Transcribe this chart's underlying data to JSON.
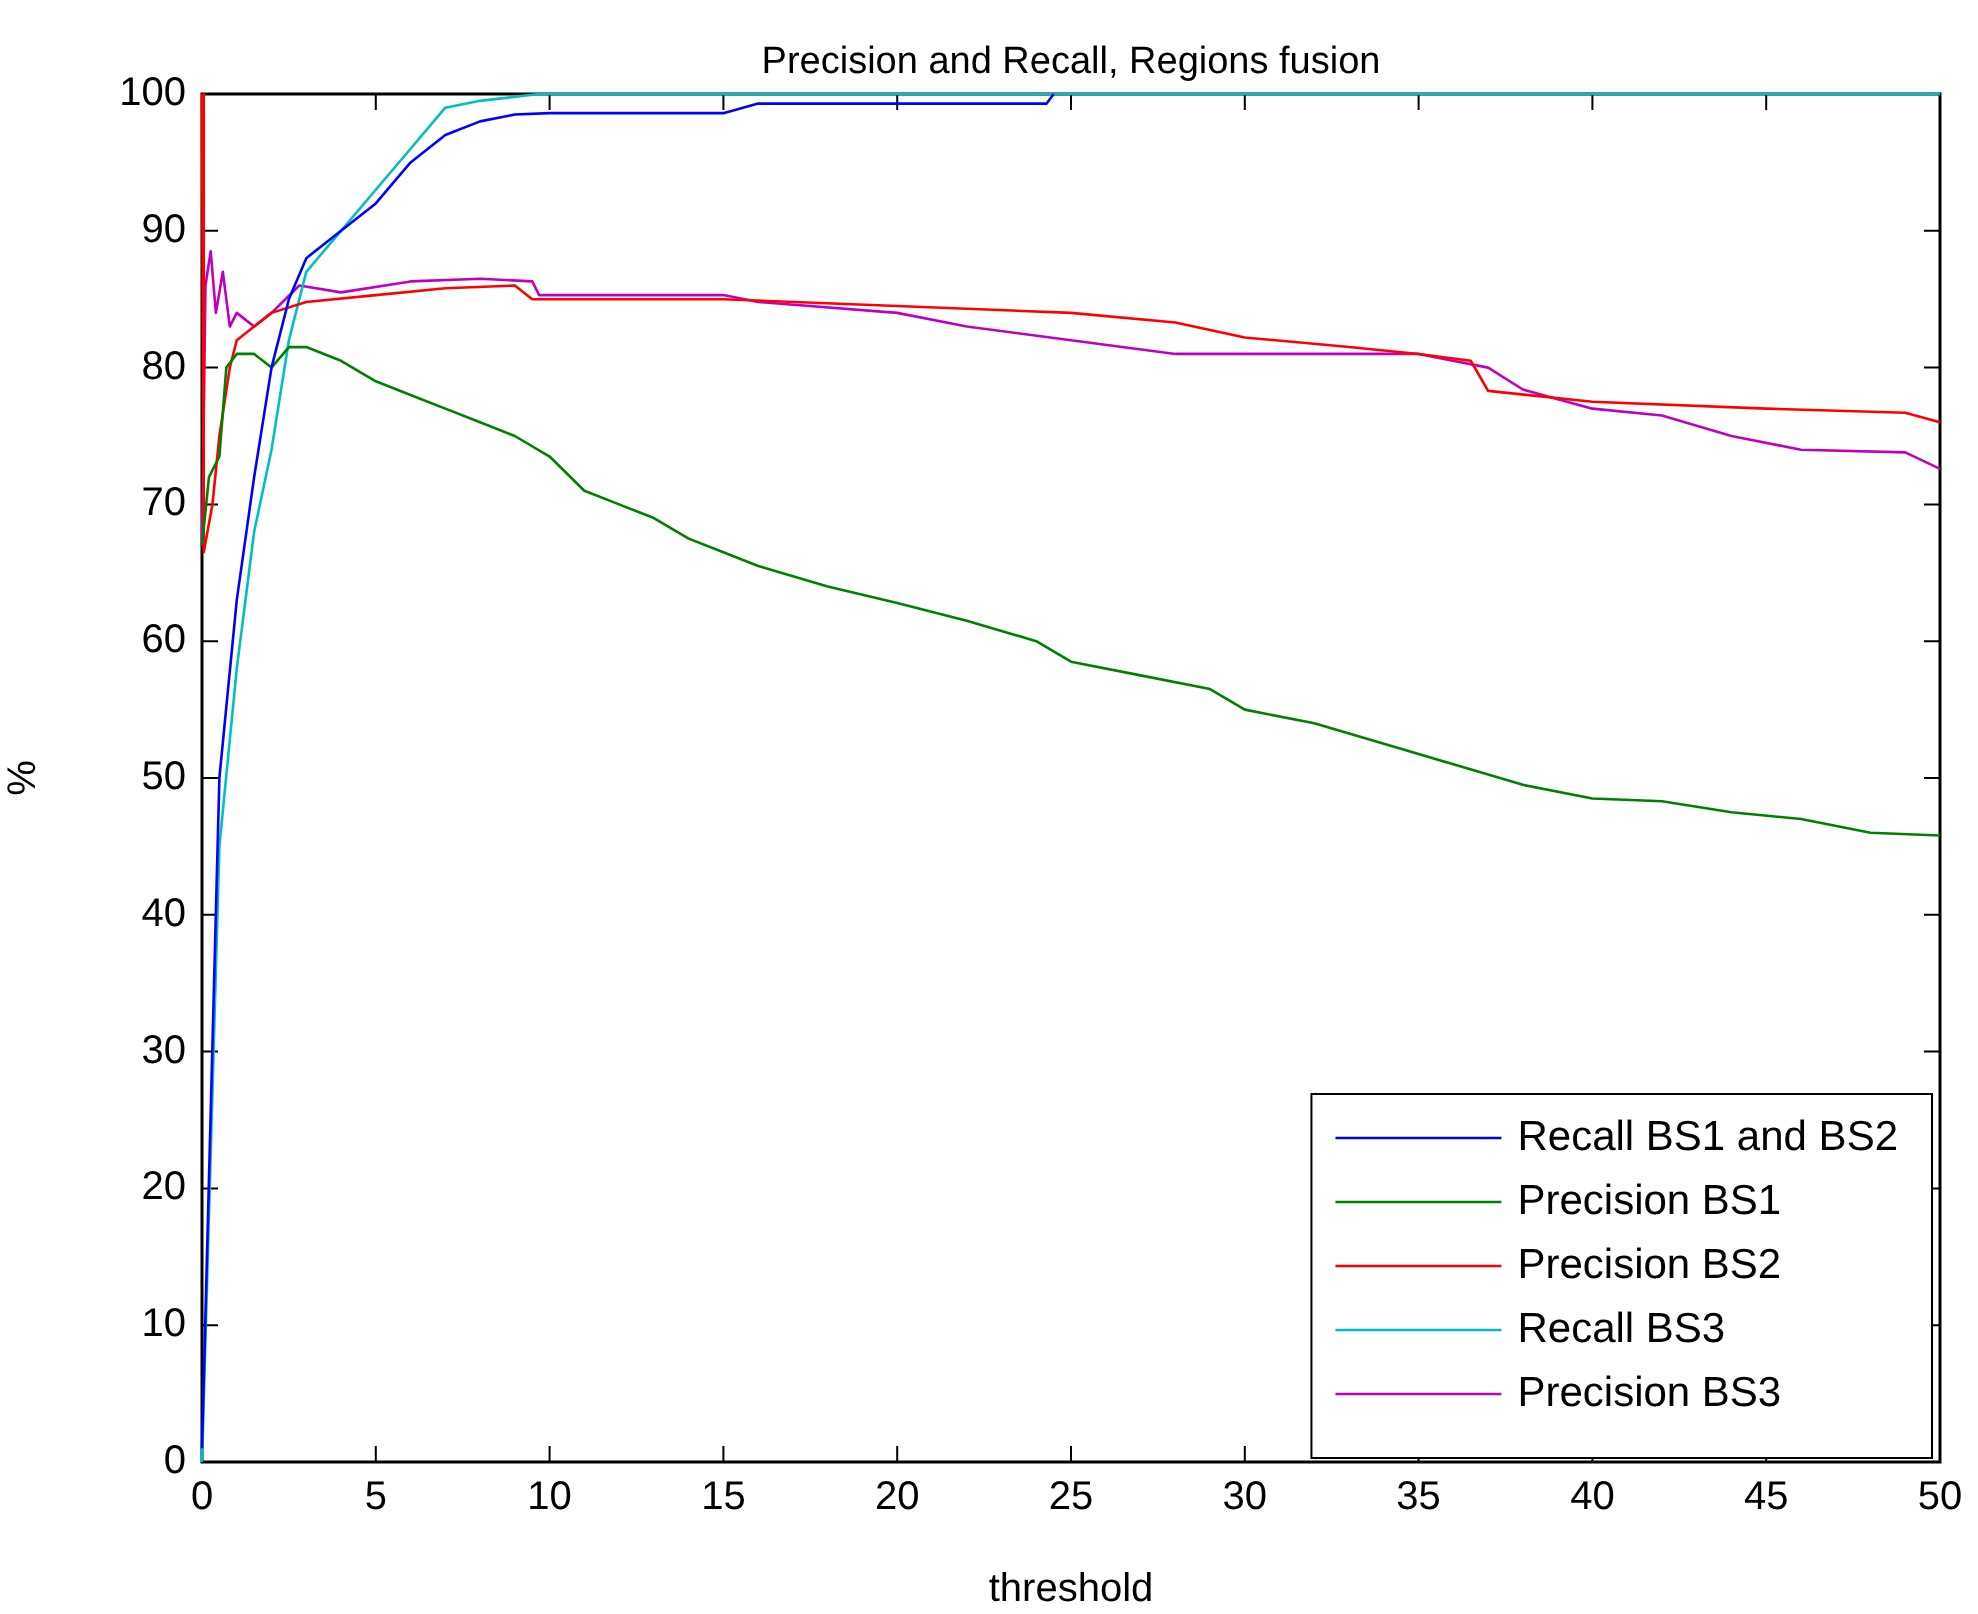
{
  "chart_data": {
    "type": "line",
    "title": "Precision and Recall, Regions fusion",
    "xlabel": "threshold",
    "ylabel": "%",
    "xlim": [
      0,
      50
    ],
    "xticks": [
      0,
      5,
      10,
      15,
      20,
      25,
      30,
      35,
      40,
      45,
      50
    ],
    "ylim": [
      0,
      100
    ],
    "yticks": [
      0,
      10,
      20,
      30,
      40,
      50,
      60,
      70,
      80,
      90,
      100
    ],
    "grid": false,
    "legend": "bottom right",
    "marker": "none",
    "line_style": "solid",
    "series": [
      {
        "name": "Recall BS1 and BS2",
        "color": "#0000ff",
        "x": [
          0,
          0.5,
          1,
          1.5,
          2,
          2.5,
          3,
          4,
          5,
          6,
          7,
          8,
          9,
          10,
          15,
          16,
          24.3,
          24.5
        ],
        "values": [
          1,
          50,
          63,
          72,
          80,
          85,
          88,
          90,
          92,
          95,
          97,
          98,
          98.5,
          98.6,
          98.6,
          99.3,
          99.3,
          100
        ]
      },
      {
        "name": "Precision BS1",
        "color": "#008000",
        "x": [
          0,
          0.2,
          0.5,
          0.7,
          1,
          1.5,
          2,
          2.5,
          3,
          4,
          5,
          6,
          7,
          8,
          9,
          10,
          11,
          12,
          13,
          14,
          15,
          16,
          18,
          20,
          22,
          24,
          25,
          27,
          29,
          30,
          32,
          34,
          36,
          38,
          40,
          42,
          44,
          46,
          48,
          50
        ],
        "values": [
          67,
          72,
          73.5,
          80,
          81,
          81,
          80,
          81.5,
          81.5,
          80.5,
          79,
          78,
          77,
          76,
          75,
          73.5,
          71,
          70,
          69,
          67.5,
          66.5,
          65.5,
          64,
          62.8,
          61.5,
          60,
          58.5,
          57.5,
          56.5,
          55,
          54,
          52.5,
          51,
          49.5,
          48.5,
          48.3,
          47.5,
          47,
          46,
          45.8
        ]
      },
      {
        "name": "Precision BS2",
        "color": "#ff0000",
        "x": [
          0,
          0.05,
          0.3,
          0.5,
          0.8,
          1,
          1.5,
          2,
          3,
          5,
          7,
          9,
          9.5,
          15,
          20,
          25,
          28,
          30,
          33,
          35,
          36.5,
          37,
          40,
          45,
          49,
          50
        ],
        "values": [
          100,
          66.5,
          70,
          75,
          80,
          82,
          83,
          84,
          84.8,
          85.3,
          85.8,
          86,
          85,
          85,
          84.5,
          84,
          83.3,
          82.2,
          81.5,
          81,
          80.5,
          78.3,
          77.5,
          77,
          76.7,
          76
        ]
      },
      {
        "name": "Recall BS3",
        "color": "#00bfbf",
        "x": [
          0,
          0.5,
          1,
          1.5,
          2,
          2.5,
          3,
          4,
          5,
          6,
          7,
          8,
          9.7,
          50
        ],
        "values": [
          0,
          45,
          58,
          68,
          74,
          82,
          87,
          90,
          93,
          96,
          99,
          99.5,
          100,
          100
        ]
      },
      {
        "name": "Precision BS3",
        "color": "#bf00bf",
        "x": [
          0,
          0.1,
          0.25,
          0.4,
          0.6,
          0.8,
          1,
          1.5,
          2,
          2.8,
          4,
          6,
          8,
          9.5,
          9.7,
          15,
          16,
          20,
          22,
          25,
          28,
          35,
          37,
          38,
          40,
          42,
          44,
          46,
          49,
          50
        ],
        "values": [
          67,
          86,
          88.5,
          84,
          87,
          83,
          84,
          83,
          84,
          86,
          85.5,
          86.3,
          86.5,
          86.3,
          85.3,
          85.3,
          84.8,
          84,
          83,
          82,
          81,
          81,
          80,
          78.4,
          77,
          76.5,
          75,
          74,
          73.8,
          72.6
        ]
      }
    ]
  }
}
